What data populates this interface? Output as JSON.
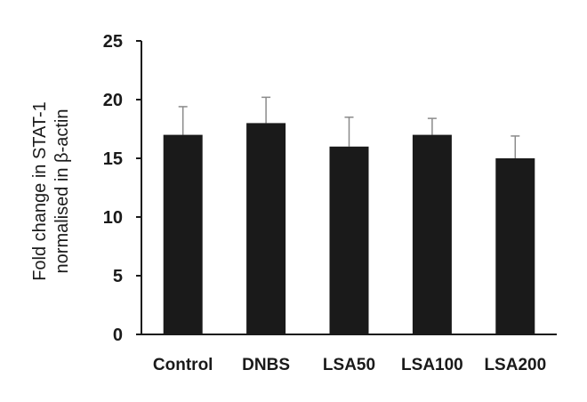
{
  "chart_data": {
    "type": "bar",
    "categories": [
      "Control",
      "DNBS",
      "LSA50",
      "LSA100",
      "LSA200"
    ],
    "values": [
      17,
      18,
      16,
      17,
      15
    ],
    "error_plus": [
      2.4,
      2.2,
      2.5,
      1.4,
      1.9
    ],
    "ylabel_line1": "Fold change in STAT-1",
    "ylabel_line2": "normalised in β-actin",
    "xlabel": "",
    "title": "",
    "ylim": [
      0,
      25
    ],
    "yticks": [
      0,
      5,
      10,
      15,
      20,
      25
    ],
    "bar_color": "#1a1a1a",
    "error_color": "#8a8a8a",
    "grid": false,
    "legend": "none"
  }
}
